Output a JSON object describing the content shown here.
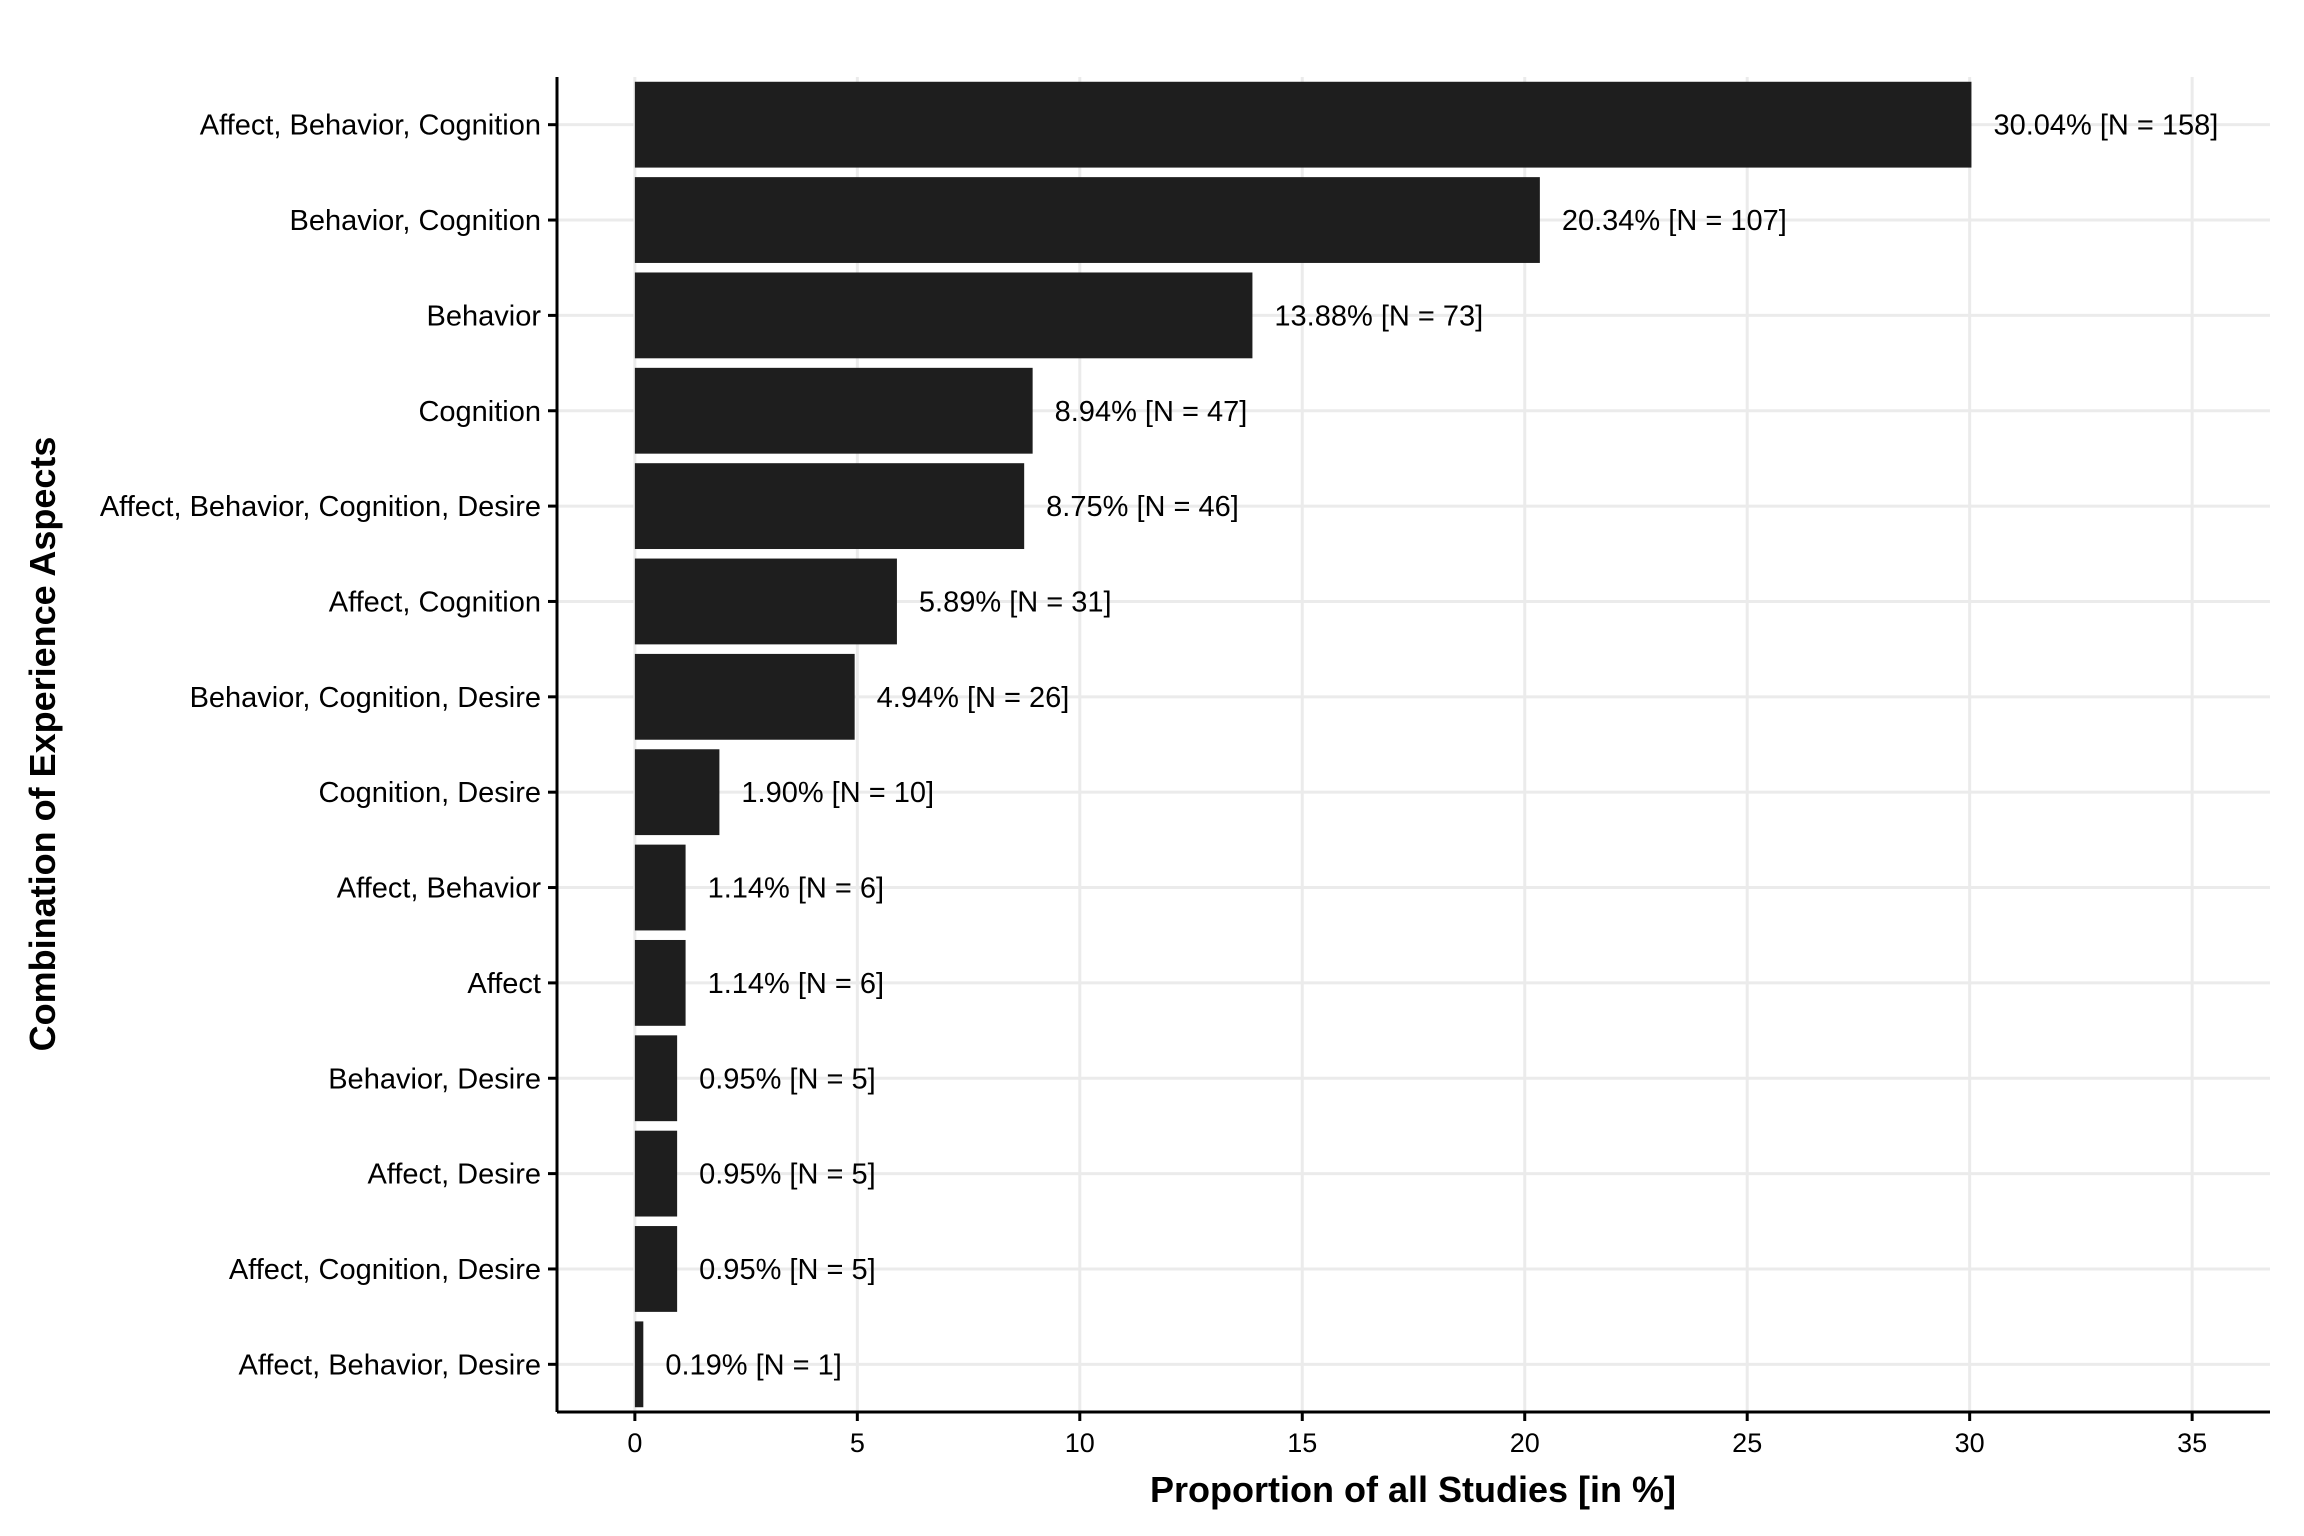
{
  "chart_data": {
    "type": "bar",
    "orientation": "horizontal",
    "categories": [
      "Affect, Behavior, Cognition",
      "Behavior, Cognition",
      "Behavior",
      "Cognition",
      "Affect, Behavior, Cognition, Desire",
      "Affect, Cognition",
      "Behavior, Cognition, Desire",
      "Cognition, Desire",
      "Affect, Behavior",
      "Affect",
      "Behavior, Desire",
      "Affect, Desire",
      "Affect, Cognition, Desire",
      "Affect, Behavior, Desire"
    ],
    "values": [
      30.04,
      20.34,
      13.88,
      8.94,
      8.75,
      5.89,
      4.94,
      1.9,
      1.14,
      1.14,
      0.95,
      0.95,
      0.95,
      0.19
    ],
    "data_labels": [
      "30.04% [N = 158]",
      "20.34% [N = 107]",
      "13.88% [N = 73]",
      "8.94% [N = 47]",
      "8.75% [N = 46]",
      "5.89% [N = 31]",
      "4.94% [N = 26]",
      "1.90% [N = 10]",
      "1.14% [N = 6]",
      "1.14% [N = 6]",
      "0.95% [N = 5]",
      "0.95% [N = 5]",
      "0.95% [N = 5]",
      "0.19% [N = 1]"
    ],
    "xlabel": "Proportion of all Studies [in %]",
    "ylabel": "Combination of Experience Aspects",
    "xlim": [
      -1.75,
      36.75
    ],
    "xticks": [
      0,
      5,
      10,
      15,
      20,
      25,
      30,
      35
    ],
    "xtick_labels": [
      "0",
      "5",
      "10",
      "15",
      "20",
      "25",
      "30",
      "35"
    ],
    "bar_color": "#1e1e1e",
    "grid_color": "#ebebeb",
    "grid": true,
    "legend": "none"
  }
}
